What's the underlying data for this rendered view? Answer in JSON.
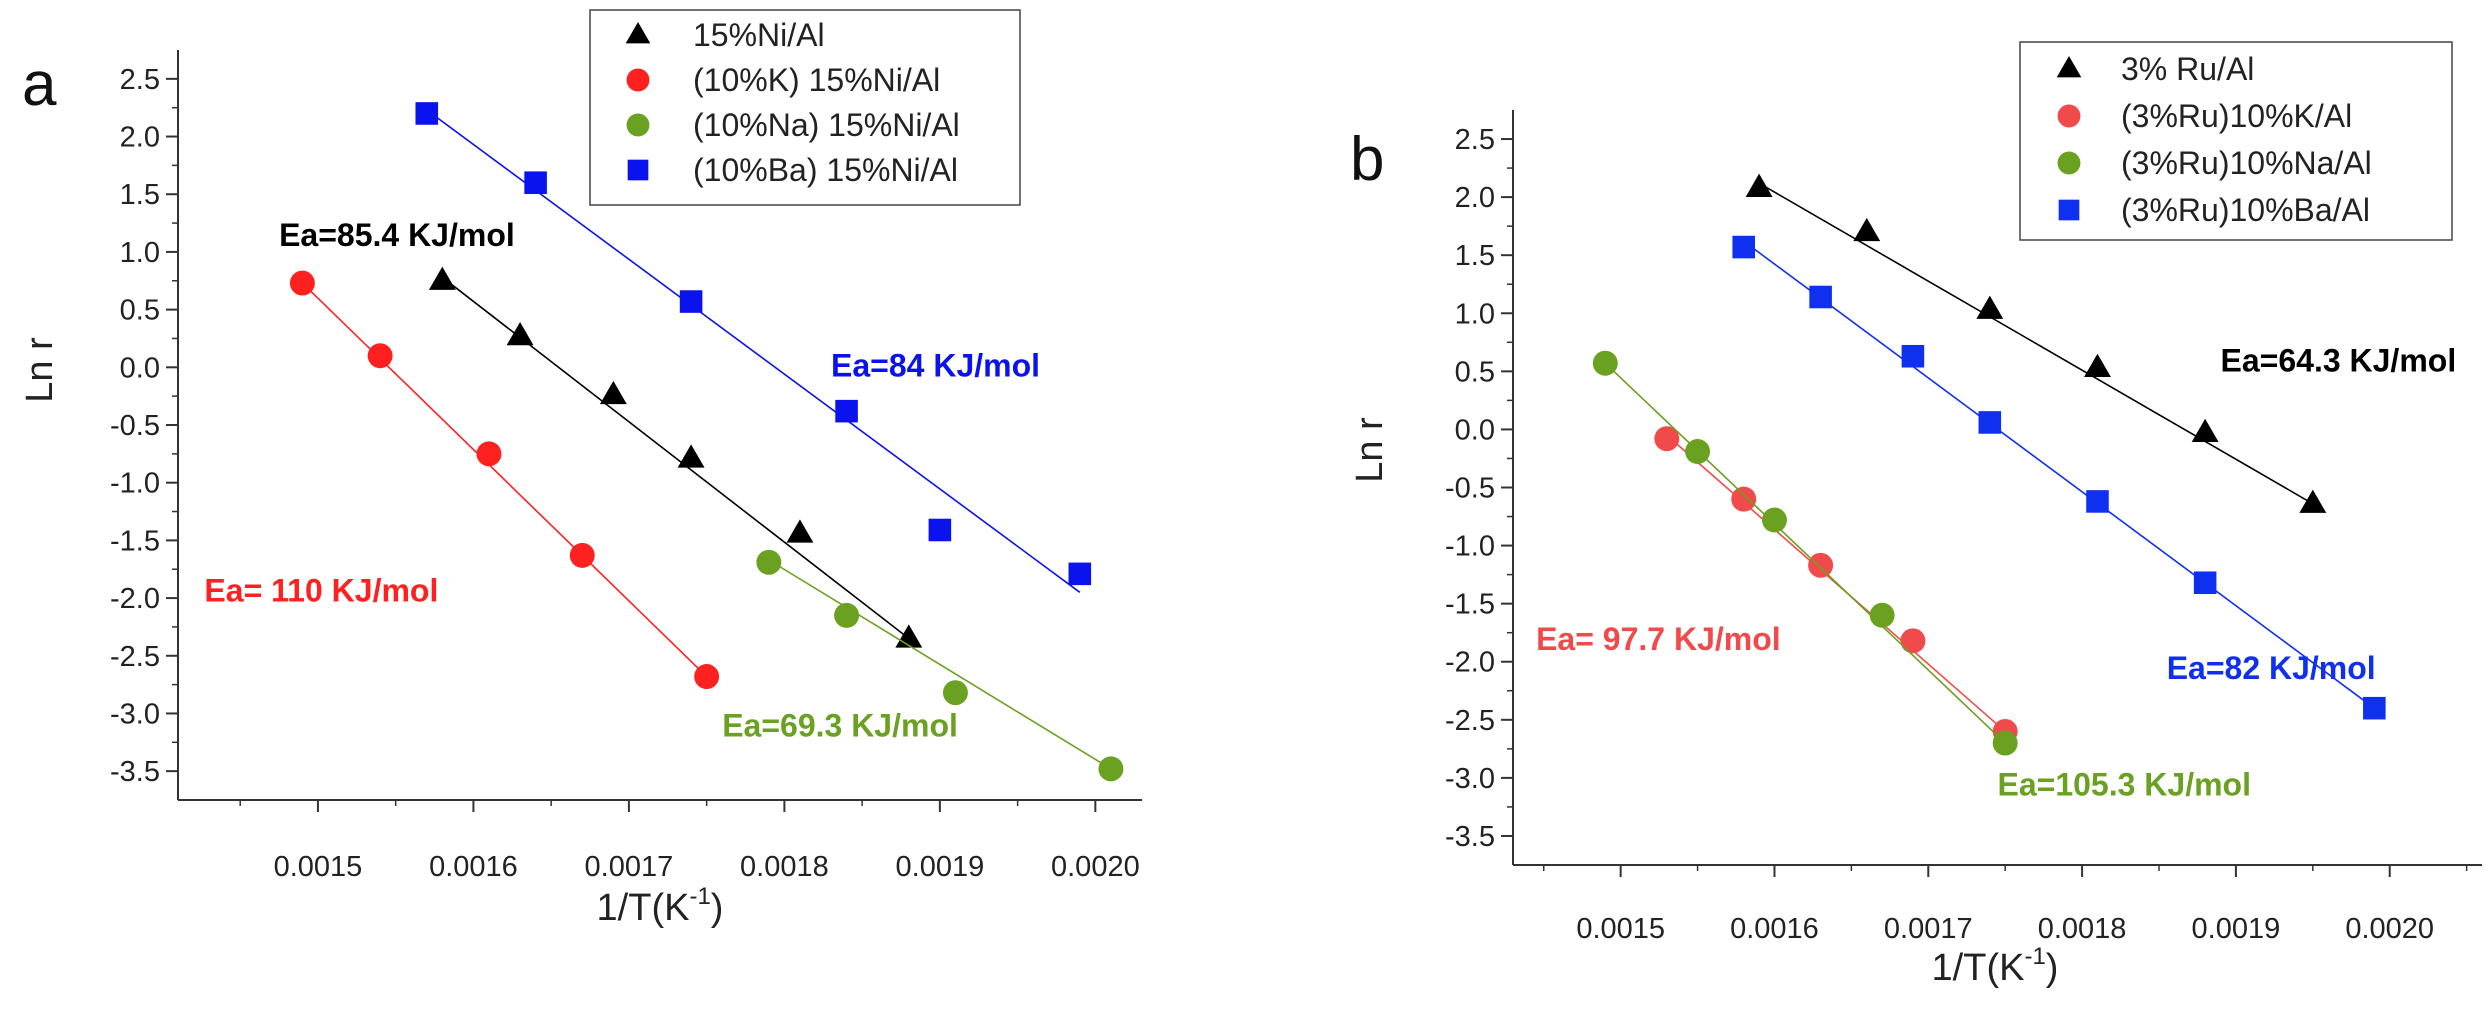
{
  "colors": {
    "black": "#000000",
    "red": "#ff2020",
    "green": "#6aa121",
    "blue": "#0a12ee",
    "red_b": "#f04a4a",
    "green_b": "#6aa121",
    "blue_b": "#1030f0",
    "axis": "#333333"
  },
  "chart_data": [
    {
      "panel_label": "a",
      "type": "scatter",
      "xlabel": "1/T(K",
      "xlabel_sup": "-1",
      "xlabel_close": ")",
      "ylabel": "Ln r",
      "xlim": [
        0.00141,
        0.00203
      ],
      "ylim": [
        -3.75,
        2.75
      ],
      "xticks": [
        0.0015,
        0.0016,
        0.0017,
        0.0018,
        0.0019,
        0.002
      ],
      "xtick_labels": [
        "0.0015",
        "0.0016",
        "0.0017",
        "0.0018",
        "0.0019",
        "0.0020"
      ],
      "yticks": [
        2.5,
        2.0,
        1.5,
        1.0,
        0.5,
        0.0,
        -0.5,
        -1.0,
        -1.5,
        -2.0,
        -2.5,
        -3.0,
        -3.5
      ],
      "ytick_labels": [
        "2.5",
        "2.0",
        "1.5",
        "1.0",
        "0.5",
        "0.0",
        "-0.5",
        "-1.0",
        "-1.5",
        "-2.0",
        "-2.5",
        "-3.0",
        "-3.5"
      ],
      "legend": [
        "15%Ni/Al",
        "(10%K) 15%Ni/Al",
        "(10%Na) 15%Ni/Al",
        "(10%Ba) 15%Ni/Al"
      ],
      "series": [
        {
          "name": "15%Ni/Al",
          "marker": "triangle",
          "color_key": "black",
          "x": [
            0.00158,
            0.00163,
            0.00169,
            0.00174,
            0.00181,
            0.00188
          ],
          "y": [
            0.75,
            0.27,
            -0.24,
            -0.79,
            -1.44,
            -2.35
          ],
          "fit": [
            [
              0.00158,
              0.78
            ],
            [
              0.00188,
              -2.35
            ]
          ]
        },
        {
          "name": "(10%K) 15%Ni/Al",
          "marker": "circle",
          "color_key": "red",
          "x": [
            0.00149,
            0.00154,
            0.00161,
            0.00167,
            0.00175
          ],
          "y": [
            0.73,
            0.1,
            -0.75,
            -1.63,
            -2.68
          ],
          "fit": [
            [
              0.00149,
              0.73
            ],
            [
              0.00175,
              -2.68
            ]
          ]
        },
        {
          "name": "(10%Na) 15%Ni/Al",
          "marker": "circle",
          "color_key": "green",
          "x": [
            0.00179,
            0.00184,
            0.00191,
            0.00201
          ],
          "y": [
            -1.69,
            -2.15,
            -2.82,
            -3.48
          ],
          "fit": [
            [
              0.00179,
              -1.67
            ],
            [
              0.00201,
              -3.48
            ]
          ]
        },
        {
          "name": "(10%Ba) 15%Ni/Al",
          "marker": "square",
          "color_key": "blue",
          "x": [
            0.00157,
            0.00164,
            0.00174,
            0.00184,
            0.0019,
            0.00199
          ],
          "y": [
            2.2,
            1.6,
            0.57,
            -0.38,
            -1.41,
            -1.79
          ],
          "fit": [
            [
              0.00157,
              2.23
            ],
            [
              0.00199,
              -1.95
            ]
          ]
        }
      ],
      "annotations": [
        {
          "text": "Ea=85.4 KJ/mol",
          "color_key": "black",
          "x": 0.001475,
          "y": 1.05
        },
        {
          "text": "Ea=84 KJ/mol",
          "color_key": "blue",
          "x": 0.00183,
          "y": -0.08
        },
        {
          "text": "Ea= 110 KJ/mol",
          "color_key": "red",
          "x": 0.001427,
          "y": -2.03
        },
        {
          "text": "Ea=69.3 KJ/mol",
          "color_key": "green",
          "x": 0.00176,
          "y": -3.2
        }
      ]
    },
    {
      "panel_label": "b",
      "type": "scatter",
      "xlabel": "1/T(K",
      "xlabel_sup": "-1",
      "xlabel_close": ")",
      "ylabel": "Ln r",
      "xlim": [
        0.00143,
        0.00206
      ],
      "ylim": [
        -3.75,
        2.75
      ],
      "xticks": [
        0.0015,
        0.0016,
        0.0017,
        0.0018,
        0.0019,
        0.002
      ],
      "xtick_labels": [
        "0.0015",
        "0.0016",
        "0.0017",
        "0.0018",
        "0.0019",
        "0.0020"
      ],
      "yticks": [
        2.5,
        2.0,
        1.5,
        1.0,
        0.5,
        0.0,
        -0.5,
        -1.0,
        -1.5,
        -2.0,
        -2.5,
        -3.0,
        -3.5
      ],
      "ytick_labels": [
        "2.5",
        "2.0",
        "1.5",
        "1.0",
        "0.5",
        "0.0",
        "-0.5",
        "-1.0",
        "-1.5",
        "-2.0",
        "-2.5",
        "-3.0",
        "-3.5"
      ],
      "legend": [
        "3% Ru/Al",
        "(3%Ru)10%K/Al",
        "(3%Ru)10%Na/Al",
        "(3%Ru)10%Ba/Al"
      ],
      "series": [
        {
          "name": "3% Ru/Al",
          "marker": "triangle",
          "color_key": "black",
          "x": [
            0.00159,
            0.00166,
            0.00174,
            0.00181,
            0.00188,
            0.00195
          ],
          "y": [
            2.08,
            1.7,
            1.03,
            0.53,
            -0.03,
            -0.64
          ],
          "fit": [
            [
              0.00159,
              2.12
            ],
            [
              0.00195,
              -0.64
            ]
          ]
        },
        {
          "name": "(3%Ru)10%K/Al",
          "marker": "circle",
          "color_key": "red_b",
          "x": [
            0.00153,
            0.00158,
            0.00163,
            0.00169,
            0.00175
          ],
          "y": [
            -0.08,
            -0.6,
            -1.17,
            -1.82,
            -2.6
          ],
          "fit": [
            [
              0.00153,
              -0.05
            ],
            [
              0.00175,
              -2.6
            ]
          ]
        },
        {
          "name": "(3%Ru)10%Na/Al",
          "marker": "circle",
          "color_key": "green_b",
          "x": [
            0.00149,
            0.00155,
            0.0016,
            0.00167,
            0.00175
          ],
          "y": [
            0.57,
            -0.19,
            -0.78,
            -1.6,
            -2.7
          ],
          "fit": [
            [
              0.00149,
              0.57
            ],
            [
              0.00175,
              -2.7
            ]
          ]
        },
        {
          "name": "(3%Ru)10%Ba/Al",
          "marker": "square",
          "color_key": "blue_b",
          "x": [
            0.00158,
            0.00163,
            0.00169,
            0.00174,
            0.00181,
            0.00188,
            0.00199
          ],
          "y": [
            1.57,
            1.14,
            0.63,
            0.06,
            -0.62,
            -1.32,
            -2.4
          ],
          "fit": [
            [
              0.00158,
              1.62
            ],
            [
              0.00199,
              -2.4
            ]
          ]
        }
      ],
      "annotations": [
        {
          "text": "Ea=64.3 KJ/mol",
          "color_key": "black",
          "x": 0.00189,
          "y": 0.5
        },
        {
          "text": "Ea= 97.7 KJ/mol",
          "color_key": "red_b",
          "x": 0.001445,
          "y": -1.9
        },
        {
          "text": "Ea=82 KJ/mol",
          "color_key": "blue_b",
          "x": 0.001855,
          "y": -2.15
        },
        {
          "text": "Ea=105.3 KJ/mol",
          "color_key": "green_b",
          "x": 0.001745,
          "y": -3.15
        }
      ]
    }
  ]
}
